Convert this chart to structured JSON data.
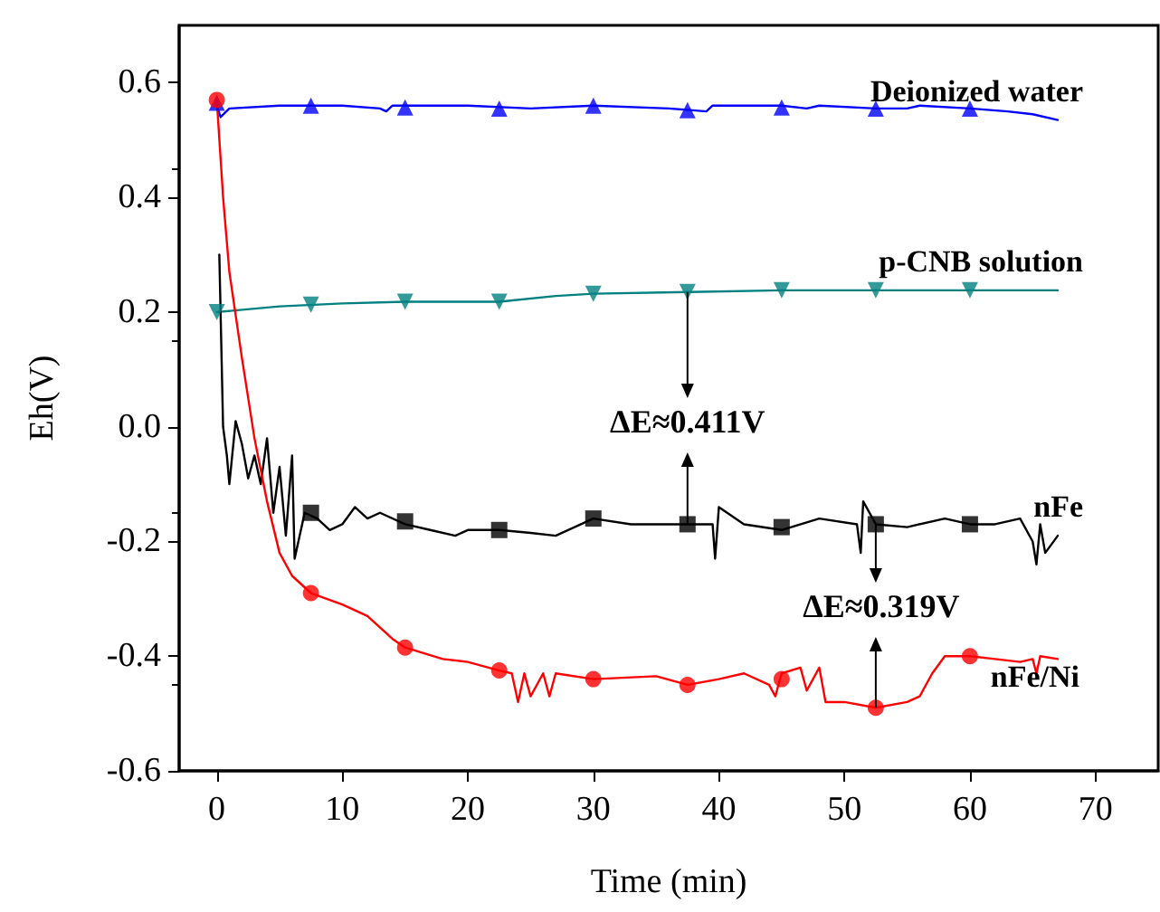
{
  "chart_data": {
    "type": "line",
    "xlabel": "Time (min)",
    "ylabel": "Eh(V)",
    "xlim": [
      -3,
      75
    ],
    "xticks": [
      0,
      10,
      20,
      30,
      40,
      50,
      60,
      70
    ],
    "ylim": [
      -0.6,
      0.7
    ],
    "yticks": [
      {
        "value": -0.6,
        "label": "-0.6"
      },
      {
        "value": -0.4,
        "label": "-0.4"
      },
      {
        "value": -0.2,
        "label": "-0.2"
      },
      {
        "value": 0,
        "label": "0.0"
      },
      {
        "value": 0.2,
        "label": "0.2"
      },
      {
        "value": 0.4,
        "label": "0.4"
      },
      {
        "value": 0.6,
        "label": "0.6"
      }
    ],
    "grid": false,
    "legend": false,
    "marker": "none",
    "line_style": "solid",
    "annotations": [
      {
        "text": "ΔE≈0.411V",
        "x": 37.5,
        "y": 0.235
      },
      {
        "text": "ΔE≈0.319V",
        "x": 52.5,
        "y": -0.17
      }
    ],
    "series": [
      {
        "name": "Deionized water",
        "color": "#0000ff",
        "x": [
          0,
          0.3,
          1,
          5,
          10,
          13,
          13.5,
          14,
          20,
          25,
          30,
          36,
          39,
          39.5,
          45,
          47,
          48,
          52.5,
          55,
          56,
          60,
          63,
          65,
          67
        ],
        "values": [
          0.56,
          0.54,
          0.555,
          0.56,
          0.56,
          0.555,
          0.55,
          0.56,
          0.56,
          0.555,
          0.56,
          0.555,
          0.55,
          0.56,
          0.56,
          0.555,
          0.56,
          0.555,
          0.555,
          0.56,
          0.555,
          0.55,
          0.545,
          0.535
        ]
      },
      {
        "name": "p-CNB solution",
        "color": "#008080",
        "x": [
          0,
          5,
          10,
          15,
          22.5,
          27,
          30,
          37.5,
          45,
          52.5,
          60,
          67
        ],
        "values": [
          0.2,
          0.21,
          0.215,
          0.218,
          0.218,
          0.228,
          0.232,
          0.235,
          0.238,
          0.238,
          0.238,
          0.238
        ]
      },
      {
        "name": "nFe",
        "color": "#000000",
        "x": [
          0.2,
          0.5,
          0.8,
          1,
          1.5,
          2,
          2.5,
          3,
          3.5,
          4,
          4.5,
          5,
          5.5,
          6,
          6.2,
          7,
          8,
          9,
          10,
          11,
          12,
          13,
          15,
          17,
          19,
          20,
          22.5,
          25,
          27,
          30,
          33,
          35,
          37.5,
          39.5,
          39.7,
          40,
          42,
          45,
          48,
          51,
          51.3,
          51.5,
          52.5,
          55,
          58,
          60,
          62,
          64,
          65,
          65.3,
          65.6,
          66,
          67
        ],
        "values": [
          0.3,
          0.0,
          -0.05,
          -0.1,
          0.01,
          -0.03,
          -0.09,
          -0.05,
          -0.1,
          -0.02,
          -0.15,
          -0.07,
          -0.19,
          -0.05,
          -0.23,
          -0.15,
          -0.16,
          -0.18,
          -0.17,
          -0.14,
          -0.16,
          -0.15,
          -0.17,
          -0.18,
          -0.19,
          -0.18,
          -0.18,
          -0.185,
          -0.19,
          -0.16,
          -0.17,
          -0.17,
          -0.17,
          -0.17,
          -0.23,
          -0.14,
          -0.17,
          -0.18,
          -0.16,
          -0.17,
          -0.22,
          -0.13,
          -0.17,
          -0.175,
          -0.16,
          -0.17,
          -0.17,
          -0.16,
          -0.2,
          -0.24,
          -0.17,
          -0.22,
          -0.19
        ]
      },
      {
        "name": "nFe/Ni",
        "color": "#ff0000",
        "x": [
          0,
          0.5,
          1,
          2,
          3,
          4,
          5,
          6,
          7.5,
          10,
          12,
          14,
          15,
          18,
          20,
          22.5,
          23.5,
          24,
          24.5,
          25,
          26,
          26.5,
          27,
          30,
          35,
          37.5,
          40,
          42,
          44,
          44.5,
          45,
          46.5,
          47,
          48,
          48.5,
          50,
          52.5,
          55,
          56,
          57,
          58,
          60,
          62,
          64,
          65,
          65.3,
          65.6,
          67
        ],
        "values": [
          0.57,
          0.4,
          0.27,
          0.12,
          -0.02,
          -0.13,
          -0.22,
          -0.26,
          -0.29,
          -0.31,
          -0.33,
          -0.37,
          -0.385,
          -0.405,
          -0.41,
          -0.425,
          -0.43,
          -0.48,
          -0.43,
          -0.47,
          -0.43,
          -0.47,
          -0.43,
          -0.44,
          -0.435,
          -0.45,
          -0.44,
          -0.43,
          -0.45,
          -0.47,
          -0.43,
          -0.42,
          -0.46,
          -0.42,
          -0.48,
          -0.48,
          -0.49,
          -0.48,
          -0.47,
          -0.43,
          -0.4,
          -0.4,
          -0.405,
          -0.41,
          -0.405,
          -0.43,
          -0.4,
          -0.405
        ]
      },
      {
        "type": "scatter",
        "marker": "triangle",
        "color": "#0000ff",
        "x": [
          0,
          7.5,
          15,
          22.5,
          30,
          37.5,
          45,
          52.5,
          60
        ],
        "values": [
          0.565,
          0.56,
          0.557,
          0.555,
          0.56,
          0.552,
          0.557,
          0.555,
          0.555
        ]
      },
      {
        "type": "scatter",
        "marker": "triangle-down",
        "color": "#008080",
        "x": [
          0,
          7.5,
          15,
          22.5,
          30,
          37.5,
          45,
          52.5,
          60
        ],
        "values": [
          0.2,
          0.213,
          0.218,
          0.218,
          0.232,
          0.235,
          0.238,
          0.238,
          0.238
        ]
      },
      {
        "type": "scatter",
        "marker": "square",
        "color": "#000000",
        "x": [
          7.5,
          15,
          22.5,
          30,
          37.5,
          45,
          52.5,
          60
        ],
        "values": [
          -0.15,
          -0.165,
          -0.18,
          -0.16,
          -0.17,
          -0.175,
          -0.17,
          -0.17
        ]
      },
      {
        "type": "scatter",
        "marker": "circle",
        "color": "#ff0000",
        "x": [
          0,
          7.5,
          15,
          22.5,
          30,
          37.5,
          45,
          52.5,
          60
        ],
        "values": [
          0.57,
          -0.29,
          -0.385,
          -0.425,
          -0.44,
          -0.45,
          -0.44,
          -0.49,
          -0.4
        ]
      }
    ]
  }
}
